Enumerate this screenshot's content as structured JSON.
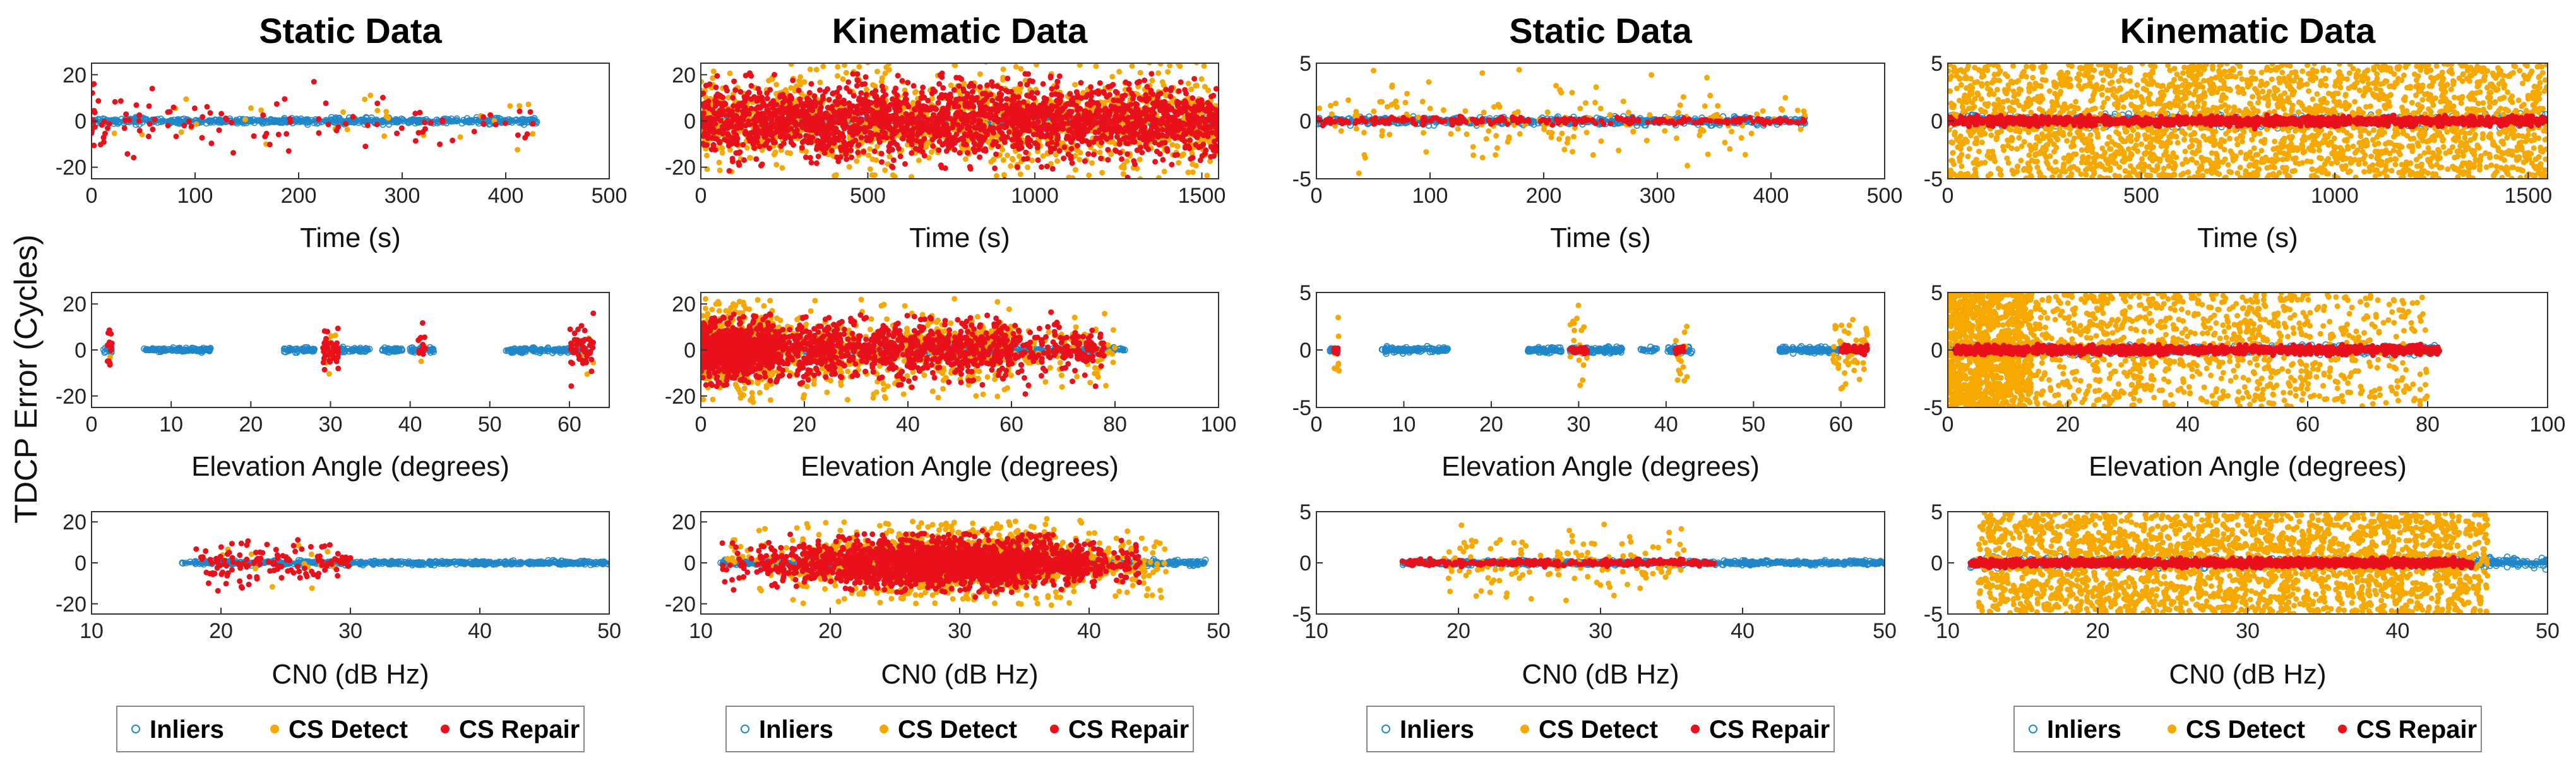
{
  "figure": {
    "ylabel": "TDCP Error (Cycles)"
  },
  "series_style": {
    "Inliers": {
      "color": "#1f87c9",
      "marker": "circle-open"
    },
    "CS Detect": {
      "color": "#f5a800",
      "marker": "dot"
    },
    "CS Repair": {
      "color": "#e8111b",
      "marker": "dot"
    }
  },
  "chart_data": [
    {
      "id": "p1",
      "type": "scatter",
      "title": "Static Data",
      "legend": [
        "Inliers",
        "CS Detect",
        "CS Repair"
      ],
      "subplots": [
        {
          "id": "p1a",
          "xlabel": "Time (s)",
          "xlim": [
            0,
            500
          ],
          "ylim": [
            -25,
            25
          ],
          "xticks": [
            0,
            100,
            200,
            300,
            400,
            500
          ],
          "yticks": [
            -20,
            0,
            20
          ],
          "x_extent": [
            0,
            430
          ],
          "series": [
            {
              "name": "Inliers",
              "count": 500,
              "spread": 1,
              "x_clusters": [
                [
                  0,
                  430
                ]
              ],
              "fill": true
            },
            {
              "name": "CS Detect",
              "count": 30,
              "spread": 10
            },
            {
              "name": "CS Repair",
              "count": 110,
              "spread": 11,
              "x_clusters": [
                [
                  0,
                  430
                ]
              ],
              "bias_left": true
            }
          ]
        },
        {
          "id": "p1b",
          "xlabel": "Elevation Angle (degrees)",
          "xlim": [
            0,
            65
          ],
          "ylim": [
            -25,
            25
          ],
          "xticks": [
            0,
            10,
            20,
            30,
            40,
            50,
            60
          ],
          "yticks": [
            -20,
            0,
            20
          ],
          "series": [
            {
              "name": "Inliers",
              "count": 400,
              "spread": 0.8,
              "x_clusters": [
                [
                  1.5,
                  2.5
                ],
                [
                  6.5,
                  15
                ],
                [
                  24,
                  28
                ],
                [
                  30,
                  35
                ],
                [
                  36.5,
                  39
                ],
                [
                  40,
                  43
                ],
                [
                  52,
                  62
                ]
              ],
              "fill": true
            },
            {
              "name": "CS Detect",
              "count": 20,
              "spread": 8,
              "x_clusters": [
                [
                  2,
                  2.5
                ],
                [
                  29,
                  31
                ],
                [
                  41,
                  42
                ],
                [
                  60,
                  63
                ]
              ]
            },
            {
              "name": "CS Repair",
              "count": 110,
              "spread": 10,
              "x_clusters": [
                [
                  2,
                  2.6
                ],
                [
                  29,
                  31
                ],
                [
                  41,
                  42
                ],
                [
                  60,
                  63
                ]
              ]
            }
          ]
        },
        {
          "id": "p1c",
          "xlabel": "CN0 (dB Hz)",
          "xlim": [
            10,
            50
          ],
          "ylim": [
            -25,
            25
          ],
          "xticks": [
            10,
            20,
            30,
            40,
            50
          ],
          "yticks": [
            -20,
            0,
            20
          ],
          "series": [
            {
              "name": "Inliers",
              "count": 450,
              "spread": 0.8,
              "x_clusters": [
                [
                  17,
                  50
                ]
              ],
              "fill": true
            },
            {
              "name": "CS Detect",
              "count": 15,
              "spread": 8,
              "x_clusters": [
                [
                  20,
                  30
                ]
              ]
            },
            {
              "name": "CS Repair",
              "count": 130,
              "spread": 9,
              "x_clusters": [
                [
                  18,
                  30
                ]
              ]
            }
          ]
        }
      ]
    },
    {
      "id": "p2",
      "type": "scatter",
      "title": "Kinematic Data",
      "legend": [
        "Inliers",
        "CS Detect",
        "CS Repair"
      ],
      "subplots": [
        {
          "id": "p2a",
          "xlabel": "Time (s)",
          "xlim": [
            0,
            1550
          ],
          "ylim": [
            -25,
            25
          ],
          "xticks": [
            0,
            500,
            1000,
            1500
          ],
          "yticks": [
            -20,
            0,
            20
          ],
          "series": [
            {
              "name": "Inliers",
              "count": 500,
              "spread": 1,
              "x_clusters": [
                [
                  0,
                  1550
                ]
              ],
              "fill": true
            },
            {
              "name": "CS Detect",
              "count": 1500,
              "spread": 16,
              "x_clusters": [
                [
                  0,
                  1550
                ]
              ]
            },
            {
              "name": "CS Repair",
              "count": 2200,
              "spread": 13,
              "x_clusters": [
                [
                  0,
                  1550
                ]
              ]
            }
          ]
        },
        {
          "id": "p2b",
          "xlabel": "Elevation Angle (degrees)",
          "xlim": [
            0,
            100
          ],
          "ylim": [
            -25,
            25
          ],
          "xticks": [
            0,
            20,
            40,
            60,
            80,
            100
          ],
          "yticks": [
            -20,
            0,
            20
          ],
          "series": [
            {
              "name": "Inliers",
              "count": 500,
              "spread": 0.8,
              "x_clusters": [
                [
                  0,
                  82
                ]
              ],
              "fill": true
            },
            {
              "name": "CS Detect",
              "count": 1200,
              "spread": 14,
              "x_clusters": [
                [
                  0,
                  14
                ],
                [
                  14,
                  60
                ],
                [
                  60,
                  80
                ]
              ],
              "weights": [
                0.5,
                0.4,
                0.1
              ]
            },
            {
              "name": "CS Repair",
              "count": 1800,
              "spread": 10,
              "x_clusters": [
                [
                  0,
                  14
                ],
                [
                  14,
                  60
                ],
                [
                  60,
                  78
                ]
              ],
              "weights": [
                0.45,
                0.45,
                0.1
              ]
            }
          ]
        },
        {
          "id": "p2c",
          "xlabel": "CN0 (dB Hz)",
          "xlim": [
            10,
            50
          ],
          "ylim": [
            -25,
            25
          ],
          "xticks": [
            10,
            20,
            30,
            40,
            50
          ],
          "yticks": [
            -20,
            0,
            20
          ],
          "series": [
            {
              "name": "Inliers",
              "count": 600,
              "spread": 1,
              "x_clusters": [
                [
                  11.5,
                  49
                ]
              ],
              "fill": true
            },
            {
              "name": "CS Detect",
              "count": 1600,
              "spread": 13,
              "x_clusters": [
                [
                  12,
                  46
                ]
              ],
              "peak": 30
            },
            {
              "name": "CS Repair",
              "count": 2200,
              "spread": 9,
              "x_clusters": [
                [
                  11.5,
                  44
                ]
              ],
              "peak": 29
            }
          ]
        }
      ]
    },
    {
      "id": "p3",
      "type": "scatter",
      "title": "Static Data",
      "legend": [
        "Inliers",
        "CS Detect",
        "CS Repair"
      ],
      "subplots": [
        {
          "id": "p3a",
          "xlabel": "Time (s)",
          "xlim": [
            0,
            500
          ],
          "ylim": [
            -5,
            5
          ],
          "xticks": [
            0,
            100,
            200,
            300,
            400,
            500
          ],
          "yticks": [
            -5,
            0,
            5
          ],
          "series": [
            {
              "name": "Inliers",
              "count": 600,
              "spread": 0.25,
              "x_clusters": [
                [
                  0,
                  430
                ]
              ],
              "fill": true
            },
            {
              "name": "CS Detect",
              "count": 170,
              "spread": 3,
              "x_clusters": [
                [
                  0,
                  430
                ]
              ]
            },
            {
              "name": "CS Repair",
              "count": 250,
              "spread": 0.25,
              "x_clusters": [
                [
                  0,
                  430
                ]
              ]
            }
          ]
        },
        {
          "id": "p3b",
          "xlabel": "Elevation Angle (degrees)",
          "xlim": [
            0,
            65
          ],
          "ylim": [
            -5,
            5
          ],
          "xticks": [
            0,
            10,
            20,
            30,
            40,
            50,
            60
          ],
          "yticks": [
            -5,
            0,
            5
          ],
          "series": [
            {
              "name": "Inliers",
              "count": 500,
              "spread": 0.2,
              "x_clusters": [
                [
                  1.5,
                  2.5
                ],
                [
                  7.5,
                  15
                ],
                [
                  24,
                  28
                ],
                [
                  29,
                  35
                ],
                [
                  37,
                  39
                ],
                [
                  40,
                  43
                ],
                [
                  53,
                  63
                ]
              ],
              "fill": true
            },
            {
              "name": "CS Detect",
              "count": 100,
              "spread": 2.5,
              "x_clusters": [
                [
                  2,
                  2.6
                ],
                [
                  29,
                  31
                ],
                [
                  41,
                  42.5
                ],
                [
                  59,
                  63
                ]
              ]
            },
            {
              "name": "CS Repair",
              "count": 140,
              "spread": 0.25,
              "x_clusters": [
                [
                  2,
                  2.6
                ],
                [
                  29,
                  31
                ],
                [
                  41,
                  42
                ],
                [
                  60,
                  63
                ]
              ]
            }
          ]
        },
        {
          "id": "p3c",
          "xlabel": "CN0 (dB Hz)",
          "xlim": [
            10,
            50
          ],
          "ylim": [
            -5,
            5
          ],
          "xticks": [
            10,
            20,
            30,
            40,
            50
          ],
          "yticks": [
            -5,
            0,
            5
          ],
          "series": [
            {
              "name": "Inliers",
              "count": 600,
              "spread": 0.15,
              "x_clusters": [
                [
                  16,
                  50
                ]
              ],
              "fill": true
            },
            {
              "name": "CS Detect",
              "count": 150,
              "spread": 2.5,
              "x_clusters": [
                [
                  19,
                  36
                ]
              ]
            },
            {
              "name": "CS Repair",
              "count": 260,
              "spread": 0.25,
              "x_clusters": [
                [
                  16,
                  38
                ]
              ]
            }
          ]
        }
      ]
    },
    {
      "id": "p4",
      "type": "scatter",
      "title": "Kinematic Data",
      "legend": [
        "Inliers",
        "CS Detect",
        "CS Repair"
      ],
      "subplots": [
        {
          "id": "p4a",
          "xlabel": "Time (s)",
          "xlim": [
            0,
            1550
          ],
          "ylim": [
            -5,
            5
          ],
          "xticks": [
            0,
            500,
            1000,
            1500
          ],
          "yticks": [
            -5,
            0,
            5
          ],
          "series": [
            {
              "name": "Inliers",
              "count": 700,
              "spread": 0.4,
              "x_clusters": [
                [
                  0,
                  1550
                ]
              ],
              "fill": true
            },
            {
              "name": "CS Detect",
              "count": 2600,
              "spread": 5,
              "uniform_y": true,
              "x_clusters": [
                [
                  0,
                  1550
                ]
              ]
            },
            {
              "name": "CS Repair",
              "count": 1400,
              "spread": 0.3,
              "x_clusters": [
                [
                  0,
                  1550
                ]
              ]
            }
          ]
        },
        {
          "id": "p4b",
          "xlabel": "Elevation Angle (degrees)",
          "xlim": [
            0,
            100
          ],
          "ylim": [
            -5,
            5
          ],
          "xticks": [
            0,
            20,
            40,
            60,
            80,
            100
          ],
          "yticks": [
            -5,
            0,
            5
          ],
          "series": [
            {
              "name": "Inliers",
              "count": 600,
              "spread": 0.3,
              "x_clusters": [
                [
                  0,
                  82
                ]
              ],
              "fill": true
            },
            {
              "name": "CS Detect",
              "count": 2000,
              "spread": 5,
              "uniform_y": true,
              "x_clusters": [
                [
                  0,
                  14
                ],
                [
                  14,
                  60
                ],
                [
                  60,
                  80
                ]
              ],
              "weights": [
                0.5,
                0.4,
                0.1
              ]
            },
            {
              "name": "CS Repair",
              "count": 1200,
              "spread": 0.3,
              "x_clusters": [
                [
                  1,
                  82
                ]
              ]
            }
          ]
        },
        {
          "id": "p4c",
          "xlabel": "CN0 (dB Hz)",
          "xlim": [
            10,
            50
          ],
          "ylim": [
            -5,
            5
          ],
          "xticks": [
            10,
            20,
            30,
            40,
            50
          ],
          "yticks": [
            -5,
            0,
            5
          ],
          "series": [
            {
              "name": "Inliers",
              "count": 700,
              "spread": 0.4,
              "x_clusters": [
                [
                  11.5,
                  50
                ]
              ],
              "fill": true
            },
            {
              "name": "CS Detect",
              "count": 2400,
              "spread": 5,
              "uniform_y": true,
              "x_clusters": [
                [
                  12,
                  46
                ]
              ]
            },
            {
              "name": "CS Repair",
              "count": 1500,
              "spread": 0.3,
              "x_clusters": [
                [
                  11.5,
                  45
                ]
              ]
            }
          ]
        }
      ]
    }
  ]
}
